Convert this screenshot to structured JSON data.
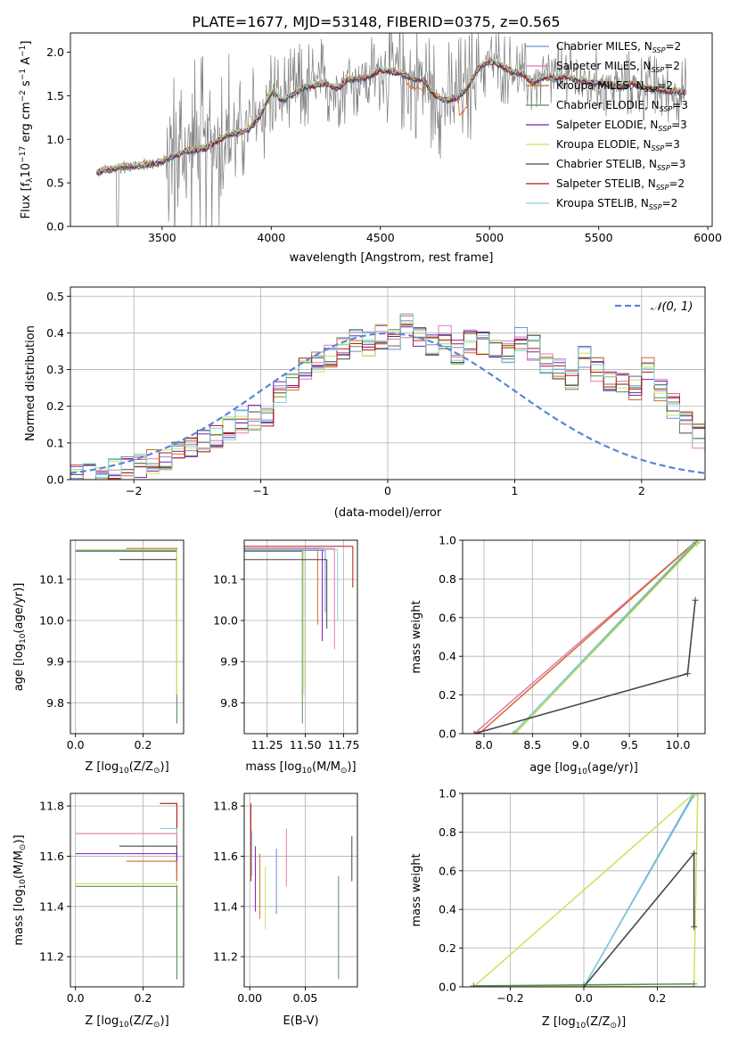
{
  "figure": {
    "title": "PLATE=1677, MJD=53148, FIBERID=0375, z=0.565"
  },
  "legend_colors": {
    "Chabrier MILES": "#6f8fd8",
    "Salpeter MILES": "#e07ab0",
    "Kroupa MILES": "#d2692f",
    "Chabrier ELODIE": "#5e8a5e",
    "Salpeter ELODIE": "#7b1fb5",
    "Kroupa ELODIE": "#c9e35a",
    "Chabrier STELIB": "#474747",
    "Salpeter STELIB": "#b81414",
    "Kroupa STELIB": "#7fd3d8"
  },
  "chart_data": [
    {
      "id": "spectrum",
      "type": "line",
      "xlabel": "wavelength [Angstrom, rest frame]",
      "ylabel_parts": [
        "Flux [f",
        "λ",
        "10",
        "−17",
        " erg cm",
        "−2",
        " s",
        "−1",
        " A",
        "−1",
        "]"
      ],
      "xlim": [
        3080,
        6020
      ],
      "ylim": [
        0,
        2.22
      ],
      "xticks": [
        3500,
        4000,
        4500,
        5000,
        5500,
        6000
      ],
      "yticks": [
        0.0,
        0.5,
        1.0,
        1.5,
        2.0
      ],
      "grid": false,
      "legend_position": "top-right",
      "legend": [
        {
          "label": "Chabrier MILES",
          "sub": "SSP",
          "n": "2",
          "color": "#6f8fd8"
        },
        {
          "label": "Salpeter MILES",
          "sub": "SSP",
          "n": "2",
          "color": "#e07ab0"
        },
        {
          "label": "Kroupa MILES",
          "sub": "SSP",
          "n": "2",
          "color": "#d2692f"
        },
        {
          "label": "Chabrier ELODIE",
          "sub": "SSP",
          "n": "3",
          "color": "#5e8a5e"
        },
        {
          "label": "Salpeter ELODIE",
          "sub": "SSP",
          "n": "3",
          "color": "#7b1fb5"
        },
        {
          "label": "Kroupa ELODIE",
          "sub": "SSP",
          "n": "3",
          "color": "#c9e35a"
        },
        {
          "label": "Chabrier STELIB",
          "sub": "SSP",
          "n": "3",
          "color": "#474747"
        },
        {
          "label": "Salpeter STELIB",
          "sub": "SSP",
          "n": "2",
          "color": "#b81414"
        },
        {
          "label": "Kroupa STELIB",
          "sub": "SSP",
          "n": "2",
          "color": "#7fd3d8"
        }
      ],
      "model_curve": {
        "x": [
          3200,
          3300,
          3400,
          3500,
          3550,
          3600,
          3650,
          3700,
          3750,
          3800,
          3850,
          3900,
          3950,
          4000,
          4050,
          4100,
          4150,
          4200,
          4250,
          4300,
          4350,
          4400,
          4450,
          4500,
          4550,
          4600,
          4650,
          4700,
          4750,
          4800,
          4850,
          4900,
          4950,
          5000,
          5050,
          5100,
          5150,
          5200,
          5250,
          5300,
          5350,
          5400,
          5450,
          5500,
          5550,
          5600,
          5650,
          5700,
          5750,
          5800,
          5850,
          5900
        ],
        "y": [
          0.62,
          0.68,
          0.7,
          0.74,
          0.8,
          0.86,
          0.88,
          0.9,
          0.98,
          1.05,
          1.08,
          1.12,
          1.28,
          1.55,
          1.45,
          1.52,
          1.6,
          1.62,
          1.65,
          1.58,
          1.68,
          1.7,
          1.72,
          1.8,
          1.78,
          1.75,
          1.7,
          1.68,
          1.5,
          1.45,
          1.48,
          1.6,
          1.82,
          1.9,
          1.85,
          1.78,
          1.75,
          1.65,
          1.72,
          1.7,
          1.72,
          1.68,
          1.66,
          1.65,
          1.62,
          1.6,
          1.65,
          1.6,
          1.58,
          1.56,
          1.55,
          1.55
        ]
      }
    },
    {
      "id": "residuals",
      "type": "area",
      "xlabel": "(data-model)/error",
      "ylabel": "Normed distribution",
      "xlim": [
        -2.5,
        2.5
      ],
      "ylim": [
        0,
        0.525
      ],
      "xticks": [
        -2,
        -1,
        0,
        1,
        2
      ],
      "yticks": [
        0.0,
        0.1,
        0.2,
        0.3,
        0.4,
        0.5
      ],
      "grid": true,
      "legend_position": "top-right",
      "legend": [
        {
          "label": "𝒩(0, 1)",
          "color": "#5b84d9",
          "style": "dashed"
        }
      ],
      "hist_bin_width": 0.1,
      "hist_start": -2.5,
      "hist_values": [
        0.01,
        0.01,
        0.02,
        0.03,
        0.03,
        0.04,
        0.05,
        0.06,
        0.07,
        0.09,
        0.1,
        0.12,
        0.14,
        0.16,
        0.17,
        0.18,
        0.24,
        0.27,
        0.3,
        0.32,
        0.34,
        0.36,
        0.38,
        0.37,
        0.39,
        0.38,
        0.42,
        0.38,
        0.36,
        0.39,
        0.35,
        0.38,
        0.37,
        0.36,
        0.35,
        0.38,
        0.36,
        0.32,
        0.3,
        0.28,
        0.33,
        0.3,
        0.27,
        0.26,
        0.25,
        0.3,
        0.24,
        0.2,
        0.15,
        0.12,
        0.11,
        0.1,
        0.09,
        0.08,
        0.08,
        0.07,
        0.06,
        0.05,
        0.04,
        0.03
      ]
    },
    {
      "id": "age-vs-Z",
      "type": "line",
      "xlabel_parts": [
        "Z [log",
        "10",
        "(Z/Z",
        "⊙",
        ")]"
      ],
      "ylabel_parts": [
        "age  [log",
        "10",
        "(age/yr)]"
      ],
      "xlim": [
        -0.015,
        0.32
      ],
      "ylim": [
        9.725,
        10.195
      ],
      "xticks": [
        0.0,
        0.2
      ],
      "yticks": [
        9.8,
        9.9,
        10.0,
        10.1
      ],
      "grid": true,
      "segments": [
        {
          "color": "#6f8fd8",
          "x0": 0.0,
          "x1": 0.3,
          "y": 10.17,
          "y0": 9.9,
          "y1": 10.17
        },
        {
          "color": "#d2692f",
          "x0": 0.15,
          "x1": 0.3,
          "y": 10.175,
          "y0": 10.0,
          "y1": 10.175
        },
        {
          "color": "#474747",
          "x0": 0.13,
          "x1": 0.3,
          "y": 10.148,
          "y0": 10.04,
          "y1": 10.148
        },
        {
          "color": "#5e8a5e",
          "x0": 0.0,
          "x1": 0.3,
          "y": 10.168,
          "y0": 9.75,
          "y1": 10.168
        },
        {
          "color": "#c9e35a",
          "x0": 0.0,
          "x1": 0.3,
          "y": 10.172,
          "y0": 9.82,
          "y1": 10.172
        }
      ]
    },
    {
      "id": "age-vs-mass",
      "type": "line",
      "xlabel_parts": [
        "mass [log",
        "10",
        "(M/M",
        "⊙",
        ")]"
      ],
      "xlim": [
        11.1,
        11.84
      ],
      "ylim": [
        9.725,
        10.195
      ],
      "xticks": [
        11.25,
        11.5,
        11.75
      ],
      "yticks": [
        9.8,
        9.9,
        10.0,
        10.1
      ],
      "grid": true,
      "segments": [
        {
          "color": "#5e8a5e",
          "x": 11.48,
          "y0": 9.75,
          "y1": 10.168
        },
        {
          "color": "#c9e35a",
          "x": 11.49,
          "y0": 9.82,
          "y1": 10.172
        },
        {
          "color": "#7b1fb5",
          "x": 11.61,
          "y0": 9.95,
          "y1": 10.175
        },
        {
          "color": "#d2692f",
          "x": 11.58,
          "y0": 9.99,
          "y1": 10.175
        },
        {
          "color": "#474747",
          "x": 11.64,
          "y0": 9.98,
          "y1": 10.148
        },
        {
          "color": "#e07ab0",
          "x": 11.69,
          "y0": 9.93,
          "y1": 10.175
        },
        {
          "color": "#7fd3d8",
          "x": 11.71,
          "y0": 10.0,
          "y1": 10.172
        },
        {
          "color": "#b81414",
          "x": 11.81,
          "y0": 10.08,
          "y1": 10.18
        },
        {
          "color": "#6f8fd8",
          "x": 11.63,
          "y0": 10.02,
          "y1": 10.17
        }
      ]
    },
    {
      "id": "mass-weight-vs-age",
      "type": "line",
      "xlabel_parts": [
        "age  [log",
        "10",
        "(age/yr)]"
      ],
      "ylabel": "mass weight",
      "xlim": [
        7.78,
        10.28
      ],
      "ylim": [
        0,
        1.0
      ],
      "xticks": [
        8.0,
        8.5,
        9.0,
        9.5,
        10.0
      ],
      "yticks": [
        0.0,
        0.2,
        0.4,
        0.6,
        0.8,
        1.0
      ],
      "grid": true,
      "series": [
        {
          "color": "#e07ab0",
          "x": [
            7.9,
            10.2
          ],
          "y": [
            0.0,
            1.0
          ]
        },
        {
          "color": "#d2692f",
          "x": [
            7.95,
            10.2
          ],
          "y": [
            0.0,
            1.0
          ]
        },
        {
          "color": "#6f8fd8",
          "x": [
            8.3,
            10.2
          ],
          "y": [
            0.0,
            1.0
          ]
        },
        {
          "color": "#7fd3d8",
          "x": [
            8.3,
            10.18
          ],
          "y": [
            0.0,
            0.99
          ]
        },
        {
          "color": "#5e8a5e",
          "x": [
            8.32,
            10.19
          ],
          "y": [
            0.0,
            0.985
          ]
        },
        {
          "color": "#c9e35a",
          "x": [
            8.33,
            10.21
          ],
          "y": [
            0.005,
            0.99
          ]
        },
        {
          "color": "#474747",
          "x": [
            7.9,
            10.1,
            10.18
          ],
          "y": [
            0.0,
            0.31,
            0.69
          ],
          "markers": true
        }
      ]
    },
    {
      "id": "mass-vs-Z",
      "type": "line",
      "xlabel_parts": [
        "Z [log",
        "10",
        "(Z/Z",
        "⊙",
        ")]"
      ],
      "ylabel_parts": [
        "mass [log",
        "10",
        "(M/M",
        "⊙",
        ")]"
      ],
      "xlim": [
        -0.015,
        0.32
      ],
      "ylim": [
        11.08,
        11.85
      ],
      "xticks": [
        0.0,
        0.2
      ],
      "yticks": [
        11.2,
        11.4,
        11.6,
        11.8
      ],
      "grid": true,
      "segments": [
        {
          "color": "#b81414",
          "x0": 0.25,
          "x1": 0.3,
          "y": 11.81,
          "y0": 11.7,
          "y1": 11.81
        },
        {
          "color": "#7fd3d8",
          "x0": 0.25,
          "x1": 0.3,
          "y": 11.71,
          "y0": 11.6,
          "y1": 11.71
        },
        {
          "color": "#e07ab0",
          "x0": 0.0,
          "x1": 0.3,
          "y": 11.69,
          "y0": 11.55,
          "y1": 11.69
        },
        {
          "color": "#474747",
          "x0": 0.13,
          "x1": 0.3,
          "y": 11.64,
          "y0": 11.55,
          "y1": 11.64
        },
        {
          "color": "#7b1fb5",
          "x0": 0.0,
          "x1": 0.3,
          "y": 11.61,
          "y0": 11.5,
          "y1": 11.61
        },
        {
          "color": "#d2692f",
          "x0": 0.15,
          "x1": 0.3,
          "y": 11.58,
          "y0": 11.5,
          "y1": 11.58
        },
        {
          "color": "#c9e35a",
          "x0": 0.0,
          "x1": 0.3,
          "y": 11.49,
          "y0": 11.2,
          "y1": 11.49
        },
        {
          "color": "#5e8a5e",
          "x0": 0.0,
          "x1": 0.3,
          "y": 11.48,
          "y0": 11.11,
          "y1": 11.48
        }
      ]
    },
    {
      "id": "mass-vs-ebv",
      "type": "line",
      "xlabel": "E(B-V)",
      "xlim": [
        -0.005,
        0.097
      ],
      "ylim": [
        11.08,
        11.85
      ],
      "xticks": [
        0.0,
        0.05
      ],
      "yticks": [
        11.2,
        11.4,
        11.6,
        11.8
      ],
      "grid": true,
      "segments": [
        {
          "color": "#b81414",
          "x": 0.001,
          "y0": 11.5,
          "y1": 11.81
        },
        {
          "color": "#7fd3d8",
          "x": 0.002,
          "y0": 11.52,
          "y1": 11.7
        },
        {
          "color": "#e07ab0",
          "x": 0.033,
          "y0": 11.48,
          "y1": 11.71
        },
        {
          "color": "#6f8fd8",
          "x": 0.024,
          "y0": 11.37,
          "y1": 11.63
        },
        {
          "color": "#7b1fb5",
          "x": 0.005,
          "y0": 11.38,
          "y1": 11.64
        },
        {
          "color": "#d2692f",
          "x": 0.009,
          "y0": 11.35,
          "y1": 11.61
        },
        {
          "color": "#c9e35a",
          "x": 0.014,
          "y0": 11.31,
          "y1": 11.56
        },
        {
          "color": "#5e8a5e",
          "x": 0.08,
          "y0": 11.11,
          "y1": 11.52
        },
        {
          "color": "#474747",
          "x": 0.092,
          "y0": 11.5,
          "y1": 11.68
        }
      ]
    },
    {
      "id": "mass-weight-vs-Z",
      "type": "line",
      "xlabel_parts": [
        "Z [log",
        "10",
        "(Z/Z",
        "⊙",
        ")]"
      ],
      "ylabel": "mass weight",
      "xlim": [
        -0.33,
        0.33
      ],
      "ylim": [
        0,
        1.0
      ],
      "xticks": [
        -0.2,
        0.0,
        0.2
      ],
      "yticks": [
        0.0,
        0.2,
        0.4,
        0.6,
        0.8,
        1.0
      ],
      "grid": true,
      "series": [
        {
          "color": "#6f8fd8",
          "x": [
            0.0,
            0.3
          ],
          "y": [
            0.0,
            1.0
          ]
        },
        {
          "color": "#7fd3d8",
          "x": [
            0.0,
            0.3
          ],
          "y": [
            0.0,
            0.99
          ]
        },
        {
          "color": "#c9e35a",
          "x": [
            -0.3,
            0.3
          ],
          "y": [
            0.0,
            1.0
          ]
        },
        {
          "color": "#c9e35a",
          "x": [
            -0.3,
            0.3,
            0.31
          ],
          "y": [
            0.005,
            0.0,
            1.0
          ]
        },
        {
          "color": "#5e8a5e",
          "x": [
            -0.3,
            0.0,
            0.3
          ],
          "y": [
            0.005,
            0.01,
            0.015
          ]
        },
        {
          "color": "#474747",
          "x": [
            0.0,
            0.3,
            0.3
          ],
          "y": [
            0.0,
            0.69,
            0.31
          ],
          "markers": true
        }
      ]
    }
  ]
}
